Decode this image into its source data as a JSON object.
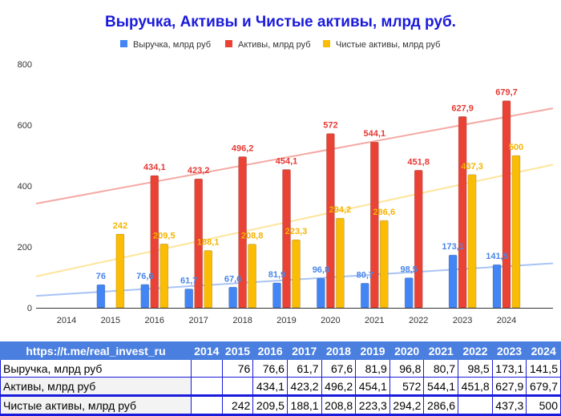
{
  "chart_data": {
    "type": "bar",
    "title": "Выручка, Активы и Чистые активы, млрд руб.",
    "categories": [
      "2014",
      "2015",
      "2016",
      "2017",
      "2018",
      "2019",
      "2020",
      "2021",
      "2022",
      "2023",
      "2024"
    ],
    "series": [
      {
        "name": "Выручка, млрд руб",
        "color": "#4285f4",
        "label_color": "#4a86e8",
        "values": [
          null,
          76,
          76.6,
          61.7,
          67.6,
          81.9,
          96.8,
          80.7,
          98.5,
          173.1,
          141.5
        ],
        "labels": [
          "",
          "76",
          "76,6",
          "61,7",
          "67,6",
          "81,9",
          "96,8",
          "80,7",
          "98,5",
          "173,1",
          "141,5"
        ]
      },
      {
        "name": "Активы, млрд руб",
        "color": "#ea4335",
        "label_color": "#e53935",
        "values": [
          null,
          null,
          434.1,
          423.2,
          496.2,
          454.1,
          572,
          544.1,
          451.8,
          627.9,
          679.7
        ],
        "labels": [
          "",
          "",
          "434,1",
          "423,2",
          "496,2",
          "454,1",
          "572",
          "544,1",
          "451,8",
          "627,9",
          "679,7"
        ]
      },
      {
        "name": "Чистые активы, млрд руб",
        "color": "#fbbc04",
        "label_color": "#f4b400",
        "values": [
          null,
          242,
          209.5,
          188.1,
          208.8,
          223.3,
          294.2,
          286.6,
          null,
          437.3,
          500
        ],
        "labels": [
          "",
          "242",
          "209,5",
          "188,1",
          "208,8",
          "223,3",
          "294,2",
          "286,6",
          "",
          "437,3",
          "500"
        ]
      }
    ],
    "trendlines": true,
    "yticks": [
      "0",
      "200",
      "400",
      "600",
      "800"
    ],
    "ylim": [
      0,
      800
    ],
    "grid": false,
    "legend": "top"
  },
  "table": {
    "header": [
      "https://t.me/real_invest_ru",
      "2014",
      "2015",
      "2016",
      "2017",
      "2018",
      "2019",
      "2020",
      "2021",
      "2022",
      "2023",
      "2024"
    ],
    "rows": [
      [
        "Выручка, млрд руб",
        "",
        "76",
        "76,6",
        "61,7",
        "67,6",
        "81,9",
        "96,8",
        "80,7",
        "98,5",
        "173,1",
        "141,5"
      ],
      [
        "Активы, млрд руб",
        "",
        "",
        "434,1",
        "423,2",
        "496,2",
        "454,1",
        "572",
        "544,1",
        "451,8",
        "627,9",
        "679,7"
      ],
      [
        "Чистые активы, млрд руб",
        "",
        "242",
        "209,5",
        "188,1",
        "208,8",
        "223,3",
        "294,2",
        "286,6",
        "",
        "437,3",
        "500"
      ]
    ]
  }
}
